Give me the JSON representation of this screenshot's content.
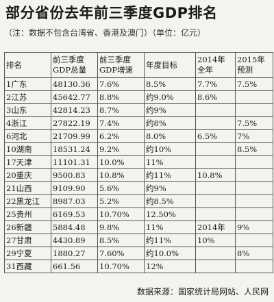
{
  "title": "部分省份去年前三季度GDP排名",
  "subtitle": "（注：数据不包含台湾省、香港及澳门）（单位：亿元）",
  "table": {
    "headers": [
      [
        "排名",
        ""
      ],
      [
        "前三季度",
        "GDP总量"
      ],
      [
        "前三季度",
        "GDP增速"
      ],
      [
        "年度目标",
        ""
      ],
      [
        "2014年",
        "全年"
      ],
      [
        "2015年",
        "预测"
      ]
    ],
    "rows": [
      [
        "1广东",
        "48130.36",
        "7.6%",
        "8.5%",
        "7.7%",
        "7.5%"
      ],
      [
        "2江苏",
        "45642.77",
        "8.8%",
        "约9.0%",
        "8.6%",
        ""
      ],
      [
        "3山东",
        "42814.23",
        "8.7%",
        "约9%",
        "",
        ""
      ],
      [
        "4浙江",
        "27822.19",
        "7.4%",
        "约8%",
        "",
        "7.5%"
      ],
      [
        "6河北",
        "21709.99",
        "6.2%",
        "8.0%",
        "6.5%",
        "7%"
      ],
      [
        "10湖南",
        "18531.24",
        "9.2%",
        "约10%",
        "",
        "8.5%"
      ],
      [
        "17天津",
        "11101.31",
        "10.0%",
        "11%",
        "",
        ""
      ],
      [
        "20重庆",
        "9500.83",
        "10.8%",
        "约11%",
        "10.8%",
        ""
      ],
      [
        "21山西",
        "9109.90",
        "5.6%",
        "约9%",
        "",
        ""
      ],
      [
        "22黑龙江",
        "8987.03",
        "5.2%",
        "约8.5%",
        "",
        ""
      ],
      [
        "25贵州",
        "6169.53",
        "10.70%",
        "12.50%",
        "",
        ""
      ],
      [
        "26新疆",
        "5884.48",
        "9.8%",
        "11%",
        "2014年",
        "9%"
      ],
      [
        "27甘肃",
        "4430.89",
        "8.5%",
        "约11%",
        "10%",
        ""
      ],
      [
        "29宁夏",
        "1880.27",
        "7.60%",
        "约10.0%",
        "",
        "8%"
      ],
      [
        "31西藏",
        "661.56",
        "10.70%",
        "12%",
        "",
        ""
      ]
    ]
  },
  "source": "数据来源：国家统计局网站、人民网"
}
